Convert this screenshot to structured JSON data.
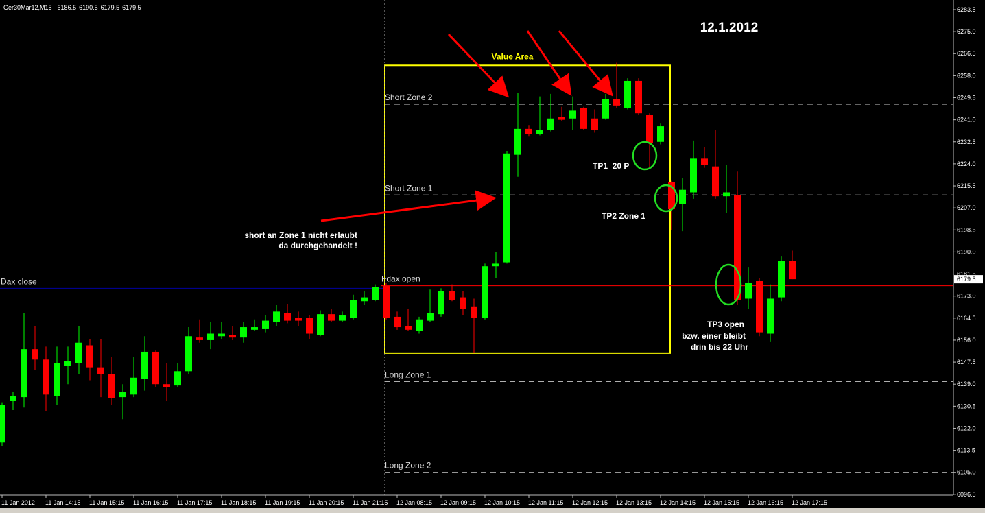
{
  "chart_data": {
    "type": "candlestick",
    "title": "Ger30Mar12,M15",
    "up_color": "#00ff00",
    "down_color": "#ff0000",
    "categories": [
      "11 Jan 2012",
      null,
      null,
      null,
      "11 Jan 14:15",
      null,
      null,
      null,
      "11 Jan 15:15",
      null,
      null,
      null,
      "11 Jan 16:15",
      null,
      null,
      null,
      "11 Jan 17:15",
      null,
      null,
      null,
      "11 Jan 18:15",
      null,
      null,
      null,
      "11 Jan 19:15",
      null,
      null,
      null,
      "11 Jan 20:15",
      null,
      null,
      null,
      "11 Jan 21:15",
      null,
      null,
      null,
      "12 Jan 08:15",
      null,
      null,
      null,
      "12 Jan 09:15",
      null,
      null,
      null,
      "12 Jan 10:15",
      null,
      null,
      null,
      "12 Jan 11:15",
      null,
      null,
      null,
      "12 Jan 12:15",
      null,
      null,
      null,
      "12 Jan 13:15",
      null,
      null,
      null,
      "12 Jan 14:15",
      null,
      null,
      null,
      "12 Jan 15:15",
      null,
      null,
      null,
      "12 Jan 16:15",
      null,
      null,
      null,
      "12 Jan 17:15"
    ],
    "open": [
      6116.5,
      6132.5,
      6134,
      6152.5,
      6148.5,
      6134.5,
      6146,
      6147,
      6154,
      6145.5,
      6143,
      6134,
      6135,
      6141,
      6151.5,
      6139,
      6138.5,
      6144,
      6157,
      6156,
      6157.5,
      6158,
      6157,
      6160,
      6160.5,
      6163,
      6166.5,
      6164.5,
      6164.5,
      6158,
      6166,
      6163.5,
      6164.5,
      6171,
      6171.5,
      6177,
      6165,
      6161.5,
      6159.5,
      6163.5,
      6166,
      6175,
      6172.5,
      6169,
      6164.5,
      6184.5,
      6186,
      6227.5,
      6237.5,
      6235.5,
      6237,
      6242,
      6241.5,
      6245.5,
      6241.5,
      6241.5,
      6249,
      6245.5,
      6256,
      6243,
      6232.5,
      6217,
      6208.5,
      6213,
      6226,
      6223,
      6211.5,
      6212,
      6172,
      6179,
      6158.5,
      6172.5,
      6186.5
    ],
    "high": [
      6132,
      6136,
      6166.5,
      6161.5,
      6153.5,
      6153.5,
      6153.5,
      6161.5,
      6156.5,
      6156.5,
      6149.5,
      6139,
      6149.5,
      6157.5,
      6152,
      6147,
      6147,
      6161,
      6164,
      6163,
      6163,
      6161.5,
      6163,
      6164,
      6165.5,
      6169.5,
      6170,
      6167,
      6165.5,
      6167.5,
      6168,
      6167,
      6173.5,
      6175,
      6177.5,
      6178,
      6167,
      6168,
      6165,
      6175.5,
      6176,
      6177.5,
      6175,
      6172,
      6185.5,
      6190,
      6229,
      6251.5,
      6239,
      6250,
      6251,
      6246,
      6250,
      6246,
      6245,
      6251,
      6263,
      6257,
      6257,
      6243.5,
      6239.5,
      6217.5,
      6218.5,
      6233,
      6230.5,
      6237,
      6223.5,
      6221,
      6184,
      6180,
      6177.5,
      6188.5,
      6190.5
    ],
    "low": [
      6115,
      6129,
      6130,
      6144.5,
      6128.5,
      6131,
      6139,
      6143,
      6140.5,
      6134,
      6131,
      6125.5,
      6134,
      6136.5,
      6138,
      6132.5,
      6138,
      6143,
      6155,
      6152.5,
      6156.5,
      6156,
      6155,
      6159.5,
      6159,
      6161.5,
      6162.5,
      6161.5,
      6156.5,
      6157.5,
      6163,
      6163,
      6164,
      6169.5,
      6171,
      6164,
      6160,
      6159.5,
      6158.5,
      6163,
      6165,
      6171,
      6165.5,
      6151,
      6164,
      6180,
      6185.5,
      6219,
      6234.5,
      6235,
      6236.5,
      6240.5,
      6237,
      6237,
      6236,
      6241,
      6245.5,
      6245,
      6243,
      6222.5,
      6231.5,
      6198.5,
      6198,
      6210.5,
      6222.5,
      6210.5,
      6205,
      6169.5,
      6168,
      6157.5,
      6155.5,
      6171,
      6179.5
    ],
    "close": [
      6131,
      6134.5,
      6152.5,
      6148.5,
      6135,
      6147,
      6148,
      6155,
      6145.5,
      6143,
      6133.5,
      6136,
      6141.5,
      6151.5,
      6139,
      6138,
      6144,
      6157.5,
      6156,
      6158.5,
      6158.5,
      6157,
      6161,
      6161,
      6163.5,
      6167,
      6163.5,
      6163.5,
      6158.5,
      6166,
      6163.5,
      6165.5,
      6171.5,
      6172.5,
      6176.5,
      6164.5,
      6161,
      6160,
      6164,
      6166.5,
      6175,
      6171.5,
      6168,
      6164.5,
      6184.5,
      6185.5,
      6228,
      6237.5,
      6235.5,
      6237,
      6241.5,
      6241,
      6244.5,
      6237.5,
      6237,
      6249,
      6246.5,
      6256,
      6243.5,
      6232,
      6238.5,
      6206.5,
      6214,
      6226,
      6223.5,
      6211.5,
      6213,
      6171.5,
      6178,
      6159,
      6172,
      6186.5,
      6179.5
    ],
    "ylim": [
      6096.2,
      6287.2
    ],
    "yticks": [
      6283.5,
      {
        "value": 6275,
        "label": "6275.0"
      },
      6266.5,
      {
        "value": 6258,
        "label": "6258.0"
      },
      6249.5,
      {
        "value": 6241,
        "label": "6241.0"
      },
      6232.5,
      {
        "value": 6224,
        "label": "6224.0"
      },
      6215.5,
      {
        "value": 6207,
        "label": "6207.0"
      },
      6198.5,
      {
        "value": 6190,
        "label": "6190.0"
      },
      6181.5,
      {
        "value": 6173,
        "label": "6173.0"
      },
      6164.5,
      {
        "value": 6156,
        "label": "6156.0"
      },
      6147.5,
      {
        "value": 6139,
        "label": "6139.0"
      },
      6130.5,
      {
        "value": 6122,
        "label": "6122.0"
      },
      6113.5,
      {
        "value": 6105,
        "label": "6105.0"
      },
      6096.5
    ],
    "levels": [
      {
        "name": "Short Zone 2",
        "value": 6247,
        "color": "#c8c8c8",
        "style": "dashed"
      },
      {
        "name": "Short Zone 1",
        "value": 6212,
        "color": "#c8c8c8",
        "style": "dashed"
      },
      {
        "name": "Long Zone 1",
        "value": 6140,
        "color": "#c8c8c8",
        "style": "dashed"
      },
      {
        "name": "Long Zone 2",
        "value": 6105,
        "color": "#c8c8c8",
        "style": "dashed"
      },
      {
        "name": "Fdax open",
        "value": 6177,
        "color": "#ff0000",
        "style": "solid"
      },
      {
        "name": "Dax close",
        "value": 6176,
        "color": "#0000a0",
        "style": "solid"
      }
    ],
    "value_area": {
      "label": "Value Area",
      "high": 6262,
      "low": 6151,
      "color": "#ffff00"
    },
    "annotations": [
      "12.1.2012",
      "short an Zone 1 nicht erlaubt",
      "da durchgehandelt !",
      "TP1  20 P",
      "TP2 Zone 1",
      "TP3 open",
      "bzw. einer bleibt",
      "drin bis 22 Uhr"
    ]
  }
}
